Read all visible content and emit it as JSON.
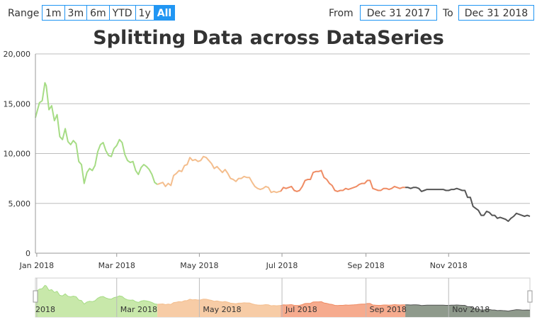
{
  "toolbar": {
    "range_label": "Range",
    "range_buttons": [
      {
        "label": "1m",
        "active": false
      },
      {
        "label": "3m",
        "active": false
      },
      {
        "label": "6m",
        "active": false
      },
      {
        "label": "YTD",
        "active": false
      },
      {
        "label": "1y",
        "active": false
      },
      {
        "label": "All",
        "active": true
      }
    ],
    "from_label": "From",
    "from_value": "Dec 31 2017",
    "to_label": "To",
    "to_value": "Dec 31 2018"
  },
  "chart_data": {
    "type": "line",
    "title": "Splitting Data across DataSeries",
    "xlabel": "",
    "ylabel": "",
    "ylim": [
      0,
      20000
    ],
    "xlim": [
      "2017-12-31",
      "2018-12-31"
    ],
    "grid": true,
    "y_ticks": [
      "0",
      "5,000",
      "10,000",
      "15,000",
      "20,000"
    ],
    "x_ticks": [
      {
        "date": "2018-01-01",
        "label": "Jan 2018"
      },
      {
        "date": "2018-03-01",
        "label": "Mar 2018"
      },
      {
        "date": "2018-05-01",
        "label": "May 2018"
      },
      {
        "date": "2018-07-01",
        "label": "Jul 2018"
      },
      {
        "date": "2018-09-01",
        "label": "Sep 2018"
      },
      {
        "date": "2018-11-01",
        "label": "Nov 2018"
      }
    ],
    "navigator_ticks": [
      {
        "date": "2018-01-01",
        "label": "2018"
      },
      {
        "date": "2018-03-01",
        "label": "Mar 2018"
      },
      {
        "date": "2018-05-01",
        "label": "May 2018"
      },
      {
        "date": "2018-07-01",
        "label": "Jul 2018"
      },
      {
        "date": "2018-09-01",
        "label": "Sep 2018"
      },
      {
        "date": "2018-11-01",
        "label": "Nov 2018"
      }
    ],
    "series": [
      {
        "color": "#a6dc85",
        "nav_color": "#c8e8aa",
        "points": [
          [
            "2017-12-31",
            13600
          ],
          [
            "2018-01-03",
            15100
          ],
          [
            "2018-01-05",
            15300
          ],
          [
            "2018-01-07",
            17100
          ],
          [
            "2018-01-08",
            16800
          ],
          [
            "2018-01-10",
            14400
          ],
          [
            "2018-01-12",
            14800
          ],
          [
            "2018-01-14",
            13300
          ],
          [
            "2018-01-16",
            13900
          ],
          [
            "2018-01-18",
            11700
          ],
          [
            "2018-01-20",
            11400
          ],
          [
            "2018-01-22",
            12500
          ],
          [
            "2018-01-24",
            11200
          ],
          [
            "2018-01-26",
            10900
          ],
          [
            "2018-01-28",
            11300
          ],
          [
            "2018-01-30",
            11000
          ],
          [
            "2018-02-01",
            9200
          ],
          [
            "2018-02-03",
            8900
          ],
          [
            "2018-02-05",
            7000
          ],
          [
            "2018-02-07",
            8100
          ],
          [
            "2018-02-09",
            8500
          ],
          [
            "2018-02-11",
            8300
          ],
          [
            "2018-02-13",
            8800
          ],
          [
            "2018-02-15",
            10200
          ],
          [
            "2018-02-17",
            10900
          ],
          [
            "2018-02-19",
            11100
          ],
          [
            "2018-02-21",
            10300
          ],
          [
            "2018-02-23",
            9800
          ],
          [
            "2018-02-25",
            9700
          ],
          [
            "2018-02-27",
            10500
          ],
          [
            "2018-03-01",
            10800
          ],
          [
            "2018-03-03",
            11400
          ],
          [
            "2018-03-05",
            11100
          ],
          [
            "2018-03-07",
            9900
          ],
          [
            "2018-03-09",
            9300
          ],
          [
            "2018-03-11",
            9100
          ],
          [
            "2018-03-13",
            9200
          ],
          [
            "2018-03-15",
            8300
          ],
          [
            "2018-03-17",
            7900
          ],
          [
            "2018-03-19",
            8600
          ],
          [
            "2018-03-21",
            8900
          ],
          [
            "2018-03-23",
            8700
          ],
          [
            "2018-03-25",
            8400
          ],
          [
            "2018-03-27",
            7900
          ],
          [
            "2018-03-29",
            7100
          ],
          [
            "2018-03-31",
            6900
          ]
        ]
      },
      {
        "color": "#f4be8e",
        "nav_color": "#f7cca6",
        "points": [
          [
            "2018-03-31",
            6900
          ],
          [
            "2018-04-02",
            7000
          ],
          [
            "2018-04-04",
            7100
          ],
          [
            "2018-04-06",
            6700
          ],
          [
            "2018-04-08",
            7000
          ],
          [
            "2018-04-10",
            6800
          ],
          [
            "2018-04-12",
            7800
          ],
          [
            "2018-04-14",
            8000
          ],
          [
            "2018-04-16",
            8300
          ],
          [
            "2018-04-18",
            8200
          ],
          [
            "2018-04-20",
            8800
          ],
          [
            "2018-04-22",
            8900
          ],
          [
            "2018-04-24",
            9600
          ],
          [
            "2018-04-26",
            9300
          ],
          [
            "2018-04-28",
            9400
          ],
          [
            "2018-04-30",
            9200
          ],
          [
            "2018-05-02",
            9300
          ],
          [
            "2018-05-04",
            9700
          ],
          [
            "2018-05-06",
            9600
          ],
          [
            "2018-05-08",
            9300
          ],
          [
            "2018-05-10",
            9000
          ],
          [
            "2018-05-12",
            8500
          ],
          [
            "2018-05-14",
            8700
          ],
          [
            "2018-05-16",
            8400
          ],
          [
            "2018-05-18",
            8100
          ],
          [
            "2018-05-20",
            8400
          ],
          [
            "2018-05-22",
            8000
          ],
          [
            "2018-05-24",
            7500
          ],
          [
            "2018-05-26",
            7400
          ],
          [
            "2018-05-28",
            7200
          ],
          [
            "2018-05-30",
            7500
          ],
          [
            "2018-06-01",
            7500
          ],
          [
            "2018-06-03",
            7700
          ],
          [
            "2018-06-05",
            7600
          ],
          [
            "2018-06-07",
            7600
          ],
          [
            "2018-06-09",
            7100
          ],
          [
            "2018-06-11",
            6700
          ],
          [
            "2018-06-13",
            6500
          ],
          [
            "2018-06-15",
            6400
          ],
          [
            "2018-06-17",
            6500
          ],
          [
            "2018-06-19",
            6700
          ],
          [
            "2018-06-21",
            6600
          ],
          [
            "2018-06-23",
            6100
          ],
          [
            "2018-06-25",
            6200
          ],
          [
            "2018-06-27",
            6100
          ],
          [
            "2018-06-29",
            6200
          ],
          [
            "2018-06-30",
            6200
          ]
        ]
      },
      {
        "color": "#ef8c64",
        "nav_color": "#f6ab8e",
        "points": [
          [
            "2018-06-30",
            6200
          ],
          [
            "2018-07-02",
            6600
          ],
          [
            "2018-07-04",
            6500
          ],
          [
            "2018-07-06",
            6600
          ],
          [
            "2018-07-08",
            6700
          ],
          [
            "2018-07-10",
            6300
          ],
          [
            "2018-07-12",
            6200
          ],
          [
            "2018-07-14",
            6300
          ],
          [
            "2018-07-16",
            6700
          ],
          [
            "2018-07-18",
            7300
          ],
          [
            "2018-07-20",
            7400
          ],
          [
            "2018-07-22",
            7400
          ],
          [
            "2018-07-24",
            8100
          ],
          [
            "2018-07-26",
            8200
          ],
          [
            "2018-07-28",
            8200
          ],
          [
            "2018-07-30",
            8300
          ],
          [
            "2018-08-01",
            7600
          ],
          [
            "2018-08-03",
            7400
          ],
          [
            "2018-08-05",
            7000
          ],
          [
            "2018-08-07",
            6800
          ],
          [
            "2018-08-09",
            6300
          ],
          [
            "2018-08-11",
            6200
          ],
          [
            "2018-08-13",
            6300
          ],
          [
            "2018-08-15",
            6300
          ],
          [
            "2018-08-17",
            6500
          ],
          [
            "2018-08-19",
            6400
          ],
          [
            "2018-08-21",
            6500
          ],
          [
            "2018-08-23",
            6600
          ],
          [
            "2018-08-25",
            6700
          ],
          [
            "2018-08-27",
            6900
          ],
          [
            "2018-08-29",
            7000
          ],
          [
            "2018-08-31",
            7000
          ],
          [
            "2018-09-02",
            7300
          ],
          [
            "2018-09-04",
            7300
          ],
          [
            "2018-09-06",
            6500
          ],
          [
            "2018-09-08",
            6400
          ],
          [
            "2018-09-10",
            6300
          ],
          [
            "2018-09-12",
            6300
          ],
          [
            "2018-09-14",
            6500
          ],
          [
            "2018-09-16",
            6500
          ],
          [
            "2018-09-18",
            6400
          ],
          [
            "2018-09-20",
            6500
          ],
          [
            "2018-09-22",
            6700
          ],
          [
            "2018-09-24",
            6600
          ],
          [
            "2018-09-26",
            6500
          ],
          [
            "2018-09-28",
            6600
          ],
          [
            "2018-09-30",
            6600
          ]
        ]
      },
      {
        "color": "#555555",
        "nav_color": "#8f9a8c",
        "points": [
          [
            "2018-09-30",
            6600
          ],
          [
            "2018-10-02",
            6600
          ],
          [
            "2018-10-04",
            6500
          ],
          [
            "2018-10-06",
            6600
          ],
          [
            "2018-10-08",
            6600
          ],
          [
            "2018-10-10",
            6500
          ],
          [
            "2018-10-12",
            6200
          ],
          [
            "2018-10-14",
            6300
          ],
          [
            "2018-10-16",
            6400
          ],
          [
            "2018-10-18",
            6400
          ],
          [
            "2018-10-20",
            6400
          ],
          [
            "2018-10-22",
            6400
          ],
          [
            "2018-10-24",
            6400
          ],
          [
            "2018-10-26",
            6400
          ],
          [
            "2018-10-28",
            6400
          ],
          [
            "2018-10-30",
            6300
          ],
          [
            "2018-11-01",
            6300
          ],
          [
            "2018-11-03",
            6400
          ],
          [
            "2018-11-05",
            6400
          ],
          [
            "2018-11-07",
            6500
          ],
          [
            "2018-11-09",
            6400
          ],
          [
            "2018-11-11",
            6300
          ],
          [
            "2018-11-13",
            6300
          ],
          [
            "2018-11-15",
            5600
          ],
          [
            "2018-11-17",
            5600
          ],
          [
            "2018-11-19",
            4700
          ],
          [
            "2018-11-21",
            4500
          ],
          [
            "2018-11-23",
            4300
          ],
          [
            "2018-11-25",
            3800
          ],
          [
            "2018-11-27",
            3800
          ],
          [
            "2018-11-29",
            4200
          ],
          [
            "2018-12-01",
            4100
          ],
          [
            "2018-12-03",
            3800
          ],
          [
            "2018-12-05",
            3800
          ],
          [
            "2018-12-07",
            3500
          ],
          [
            "2018-12-09",
            3600
          ],
          [
            "2018-12-11",
            3500
          ],
          [
            "2018-12-13",
            3400
          ],
          [
            "2018-12-15",
            3200
          ],
          [
            "2018-12-17",
            3500
          ],
          [
            "2018-12-19",
            3700
          ],
          [
            "2018-12-21",
            4000
          ],
          [
            "2018-12-23",
            3900
          ],
          [
            "2018-12-25",
            3800
          ],
          [
            "2018-12-27",
            3700
          ],
          [
            "2018-12-29",
            3800
          ],
          [
            "2018-12-31",
            3700
          ]
        ]
      }
    ]
  }
}
